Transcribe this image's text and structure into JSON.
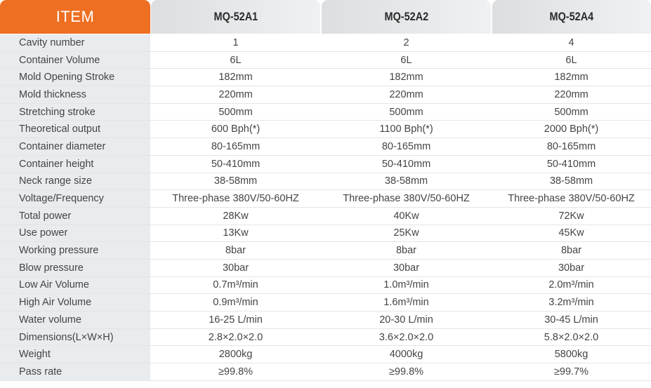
{
  "header": {
    "item": "ITEM",
    "models": [
      "MQ-52A1",
      "MQ-52A2",
      "MQ-52A4"
    ]
  },
  "colors": {
    "accent": "#ee6f22",
    "label_bg": "#e8ecef"
  },
  "rows": [
    {
      "label": "Cavity number",
      "values": [
        "1",
        "2",
        "4"
      ]
    },
    {
      "label": "Container Volume",
      "values": [
        "6L",
        "6L",
        "6L"
      ]
    },
    {
      "label": "Mold Opening Stroke",
      "values": [
        "182mm",
        "182mm",
        "182mm"
      ]
    },
    {
      "label": "Mold thickness",
      "values": [
        "220mm",
        "220mm",
        "220mm"
      ]
    },
    {
      "label": "Stretching stroke",
      "values": [
        "500mm",
        "500mm",
        "500mm"
      ]
    },
    {
      "label": "Theoretical output",
      "values": [
        "600 Bph(*)",
        "1100 Bph(*)",
        "2000 Bph(*)"
      ]
    },
    {
      "label": "Container diameter",
      "values": [
        "80-165mm",
        "80-165mm",
        "80-165mm"
      ]
    },
    {
      "label": "Container height",
      "values": [
        "50-410mm",
        "50-410mm",
        "50-410mm"
      ]
    },
    {
      "label": "Neck range size",
      "values": [
        "38-58mm",
        "38-58mm",
        "38-58mm"
      ]
    },
    {
      "label": "Voltage/Frequency",
      "values": [
        "Three-phase 380V/50-60HZ",
        "Three-phase 380V/50-60HZ",
        "Three-phase 380V/50-60HZ"
      ]
    },
    {
      "label": "Total power",
      "values": [
        "28Kw",
        "40Kw",
        "72Kw"
      ]
    },
    {
      "label": "Use power",
      "values": [
        "13Kw",
        "25Kw",
        "45Kw"
      ]
    },
    {
      "label": "Working pressure",
      "values": [
        "8bar",
        "8bar",
        "8bar"
      ]
    },
    {
      "label": "Blow pressure",
      "values": [
        "30bar",
        "30bar",
        "30bar"
      ]
    },
    {
      "label": "Low Air Volume",
      "values": [
        "0.7m³/min",
        "1.0m³/min",
        "2.0m³/min"
      ]
    },
    {
      "label": "High Air Volume",
      "values": [
        "0.9m³/min",
        "1.6m³/min",
        "3.2m³/min"
      ]
    },
    {
      "label": "Water volume",
      "values": [
        "16-25 L/min",
        "20-30 L/min",
        "30-45 L/min"
      ]
    },
    {
      "label": "Dimensions(L×W×H)",
      "values": [
        "2.8×2.0×2.0",
        "3.6×2.0×2.0",
        "5.8×2.0×2.0"
      ]
    },
    {
      "label": "Weight",
      "values": [
        "2800kg",
        "4000kg",
        "5800kg"
      ]
    },
    {
      "label": "Pass rate",
      "values": [
        "≥99.8%",
        "≥99.8%",
        "≥99.7%"
      ]
    }
  ]
}
